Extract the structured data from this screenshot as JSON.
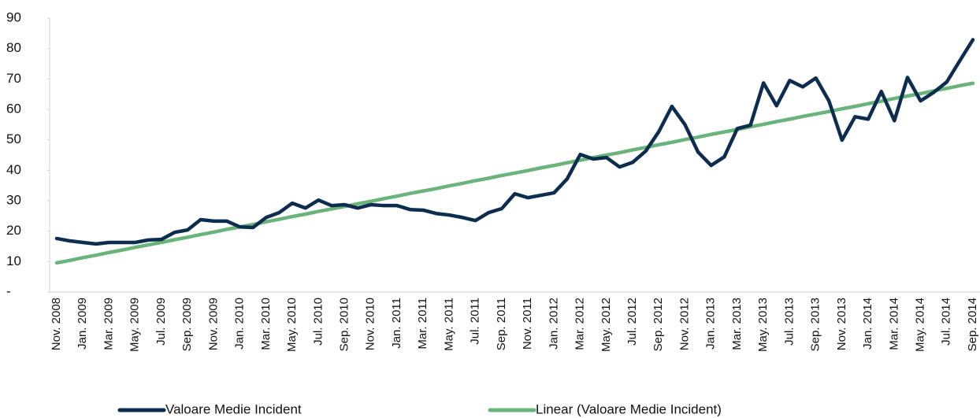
{
  "chart_data": {
    "type": "line",
    "categories": [
      "Nov. 2008",
      null,
      "Jan. 2009",
      null,
      "Mar. 2009",
      null,
      "May. 2009",
      null,
      "Jul. 2009",
      null,
      "Sep. 2009",
      null,
      "Nov. 2009",
      null,
      "Jan. 2010",
      null,
      "Mar. 2010",
      null,
      "May. 2010",
      null,
      "Jul. 2010",
      null,
      "Sep. 2010",
      null,
      "Nov. 2010",
      null,
      "Jan. 2011",
      null,
      "Mar. 2011",
      null,
      "May. 2011",
      null,
      "Jul. 2011",
      null,
      "Sep. 2011",
      null,
      "Nov. 2011",
      null,
      "Jan. 2012",
      null,
      "Mar. 2012",
      null,
      "May. 2012",
      null,
      "Jul. 2012",
      null,
      "Sep. 2012",
      null,
      "Nov. 2012",
      null,
      "Jan. 2013",
      null,
      "Mar. 2013",
      null,
      "May. 2013",
      null,
      "Jul. 2013",
      null,
      "Sep. 2013",
      null,
      "Nov. 2013",
      null,
      "Jan. 2014",
      null,
      "Mar. 2014",
      null,
      "May. 2014",
      null,
      "Jul. 2014",
      null,
      "Sep. 2014"
    ],
    "series": [
      {
        "name": "Valoare Medie Incident",
        "color": "#0d2d4f",
        "values": [
          17.6,
          16.8,
          16.3,
          15.8,
          16.3,
          16.3,
          16.3,
          17.1,
          17.3,
          19.6,
          20.4,
          23.8,
          23.3,
          23.3,
          21.4,
          21.2,
          24.5,
          26.1,
          29.2,
          27.6,
          30.2,
          28.4,
          28.7,
          27.6,
          28.7,
          28.4,
          28.4,
          27.1,
          26.9,
          25.8,
          25.3,
          24.5,
          23.5,
          26.1,
          27.4,
          32.3,
          31.0,
          31.8,
          32.6,
          37.2,
          45.2,
          43.7,
          44.2,
          41.1,
          42.6,
          46.3,
          52.7,
          61.0,
          55.0,
          46.0,
          41.6,
          44.4,
          53.7,
          54.8,
          68.7,
          61.2,
          69.5,
          67.4,
          70.3,
          62.8,
          49.9,
          57.6,
          56.8,
          65.9,
          56.3,
          70.5,
          62.8,
          65.6,
          69.0,
          76.0,
          82.9
        ]
      },
      {
        "name": "Linear (Valoare Medie Incident)",
        "color": "#6ab47b",
        "values": [
          9.6,
          10.4,
          11.3,
          12.1,
          13.0,
          13.8,
          14.7,
          15.5,
          16.3,
          17.2,
          18.0,
          18.9,
          19.7,
          20.6,
          21.4,
          22.2,
          23.1,
          23.9,
          24.8,
          25.6,
          26.5,
          27.3,
          28.1,
          29.0,
          29.8,
          30.7,
          31.5,
          32.4,
          33.2,
          34.0,
          34.9,
          35.7,
          36.6,
          37.4,
          38.3,
          39.1,
          39.9,
          40.8,
          41.6,
          42.5,
          43.3,
          44.2,
          45.0,
          45.8,
          46.7,
          47.5,
          48.4,
          49.2,
          50.1,
          50.9,
          51.8,
          52.6,
          53.4,
          54.3,
          55.1,
          56.0,
          56.8,
          57.7,
          58.5,
          59.3,
          60.2,
          61.0,
          61.9,
          62.7,
          63.6,
          64.4,
          65.2,
          66.1,
          66.9,
          67.8,
          68.6
        ]
      }
    ],
    "ylim": [
      0,
      90
    ],
    "yticks": [
      {
        "value": 0,
        "label": "-"
      },
      10,
      20,
      30,
      40,
      50,
      60,
      70,
      80,
      90
    ],
    "grid": false,
    "legend": "bottom"
  }
}
